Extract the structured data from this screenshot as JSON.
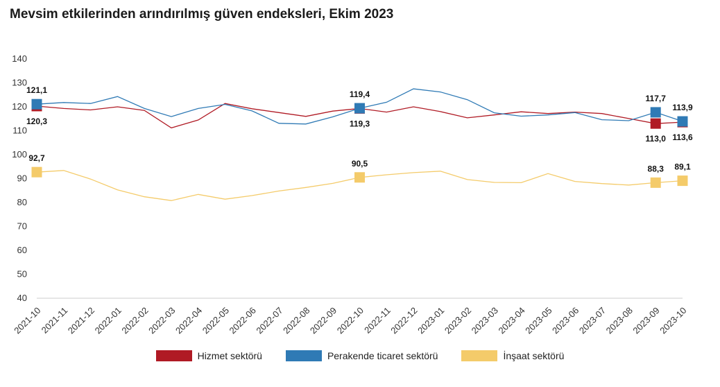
{
  "title": "Mevsim etkilerinden arındırılmış güven endeksleri, Ekim 2023",
  "chart_data": {
    "type": "line",
    "categories": [
      "2021-10",
      "2021-11",
      "2021-12",
      "2022-01",
      "2022-02",
      "2022-03",
      "2022-04",
      "2022-05",
      "2022-06",
      "2022-07",
      "2022-08",
      "2022-09",
      "2022-10",
      "2022-11",
      "2022-12",
      "2023-01",
      "2023-02",
      "2023-03",
      "2023-04",
      "2023-05",
      "2023-06",
      "2023-07",
      "2023-08",
      "2023-09",
      "2023-10"
    ],
    "ylim": [
      40,
      140
    ],
    "yticks": [
      40,
      50,
      60,
      70,
      80,
      90,
      100,
      110,
      120,
      130,
      140
    ],
    "legend_position": "bottom",
    "series": [
      {
        "name": "Hizmet sektörü",
        "color": "#b01a24",
        "values": [
          120.3,
          119.3,
          118.7,
          120.0,
          118.5,
          111.2,
          114.5,
          121.4,
          119.2,
          117.6,
          116.0,
          118.2,
          119.3,
          117.8,
          120.0,
          118.0,
          115.4,
          116.6,
          117.9,
          117.2,
          117.8,
          117.2,
          115.1,
          113.0,
          113.6
        ],
        "markers": [
          0,
          12,
          23,
          24
        ],
        "labels": [
          {
            "index": 0,
            "text": "120,3",
            "pos": "below"
          },
          {
            "index": 12,
            "text": "119,3",
            "pos": "below"
          },
          {
            "index": 23,
            "text": "113,0",
            "pos": "below"
          },
          {
            "index": 24,
            "text": "113,6",
            "pos": "below"
          }
        ]
      },
      {
        "name": "Perakende ticaret sektörü",
        "color": "#2f7ab5",
        "values": [
          121.1,
          121.8,
          121.4,
          124.3,
          119.3,
          115.9,
          119.3,
          121.0,
          118.3,
          113.1,
          112.8,
          115.8,
          119.4,
          121.9,
          127.5,
          126.2,
          123.0,
          117.5,
          116.1,
          116.6,
          117.6,
          114.6,
          114.2,
          117.7,
          113.9
        ],
        "markers": [
          0,
          12,
          23,
          24
        ],
        "labels": [
          {
            "index": 0,
            "text": "121,1",
            "pos": "above"
          },
          {
            "index": 12,
            "text": "119,4",
            "pos": "above"
          },
          {
            "index": 23,
            "text": "117,7",
            "pos": "above"
          },
          {
            "index": 24,
            "text": "113,9",
            "pos": "above"
          }
        ]
      },
      {
        "name": "İnşaat sektörü",
        "color": "#f4cb6a",
        "values": [
          92.7,
          93.4,
          89.8,
          85.3,
          82.4,
          80.8,
          83.4,
          81.4,
          82.9,
          84.8,
          86.3,
          88.0,
          90.5,
          91.6,
          92.5,
          93.1,
          89.6,
          88.4,
          88.3,
          92.1,
          88.8,
          87.9,
          87.3,
          88.3,
          89.1
        ],
        "markers": [
          0,
          12,
          23,
          24
        ],
        "labels": [
          {
            "index": 0,
            "text": "92,7",
            "pos": "above"
          },
          {
            "index": 12,
            "text": "90,5",
            "pos": "above"
          },
          {
            "index": 23,
            "text": "88,3",
            "pos": "above"
          },
          {
            "index": 24,
            "text": "89,1",
            "pos": "above"
          }
        ]
      }
    ]
  }
}
